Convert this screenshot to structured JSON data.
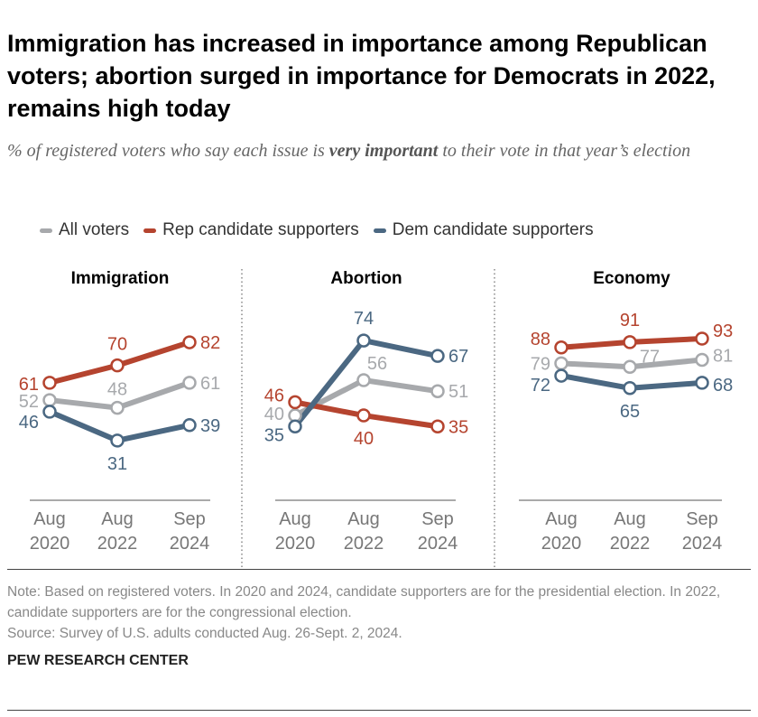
{
  "title": "Immigration has increased in importance among Republican voters; abortion surged in importance for Democrats in 2022, remains high today",
  "subtitle_pre": "% of registered voters who say each issue is ",
  "subtitle_em": "very important",
  "subtitle_post": " to their vote in that year’s election",
  "note": "Note: Based on registered voters. In 2020 and 2024, candidate supporters are for the presidential election. In 2022, candidate supporters are for the congressional election.",
  "source": "Source: Survey of U.S. adults conducted Aug. 26-Sept. 2, 2024.",
  "brand": "PEW RESEARCH CENTER",
  "legend": [
    {
      "name": "All voters",
      "color": "#a7a9ac"
    },
    {
      "name": "Rep candidate supporters",
      "color": "#b5442f"
    },
    {
      "name": "Dem candidate supporters",
      "color": "#4b6882"
    }
  ],
  "chart_data": [
    {
      "type": "line",
      "title": "Immigration",
      "categories": [
        "Aug 2020",
        "Aug 2022",
        "Sep 2024"
      ],
      "ylim": [
        0,
        105
      ],
      "series": [
        {
          "name": "All voters",
          "values": [
            52,
            48,
            61
          ]
        },
        {
          "name": "Rep candidate supporters",
          "values": [
            61,
            70,
            82
          ]
        },
        {
          "name": "Dem candidate supporters",
          "values": [
            46,
            31,
            39
          ]
        }
      ]
    },
    {
      "type": "line",
      "title": "Abortion",
      "categories": [
        "Aug 2020",
        "Aug 2022",
        "Sep 2024"
      ],
      "ylim": [
        1.5,
        93.3
      ],
      "series": [
        {
          "name": "All voters",
          "values": [
            40,
            56,
            51
          ]
        },
        {
          "name": "Rep candidate supporters",
          "values": [
            46,
            40,
            35
          ]
        },
        {
          "name": "Dem candidate supporters",
          "values": [
            35,
            74,
            67
          ]
        }
      ]
    },
    {
      "type": "line",
      "title": "Economy",
      "categories": [
        "Aug 2020",
        "Aug 2022",
        "Sep 2024"
      ],
      "ylim": [
        1.5,
        116
      ],
      "series": [
        {
          "name": "All voters",
          "values": [
            79,
            77,
            81
          ]
        },
        {
          "name": "Rep candidate supporters",
          "values": [
            88,
            91,
            93
          ]
        },
        {
          "name": "Dem candidate supporters",
          "values": [
            72,
            65,
            68
          ]
        }
      ]
    }
  ]
}
